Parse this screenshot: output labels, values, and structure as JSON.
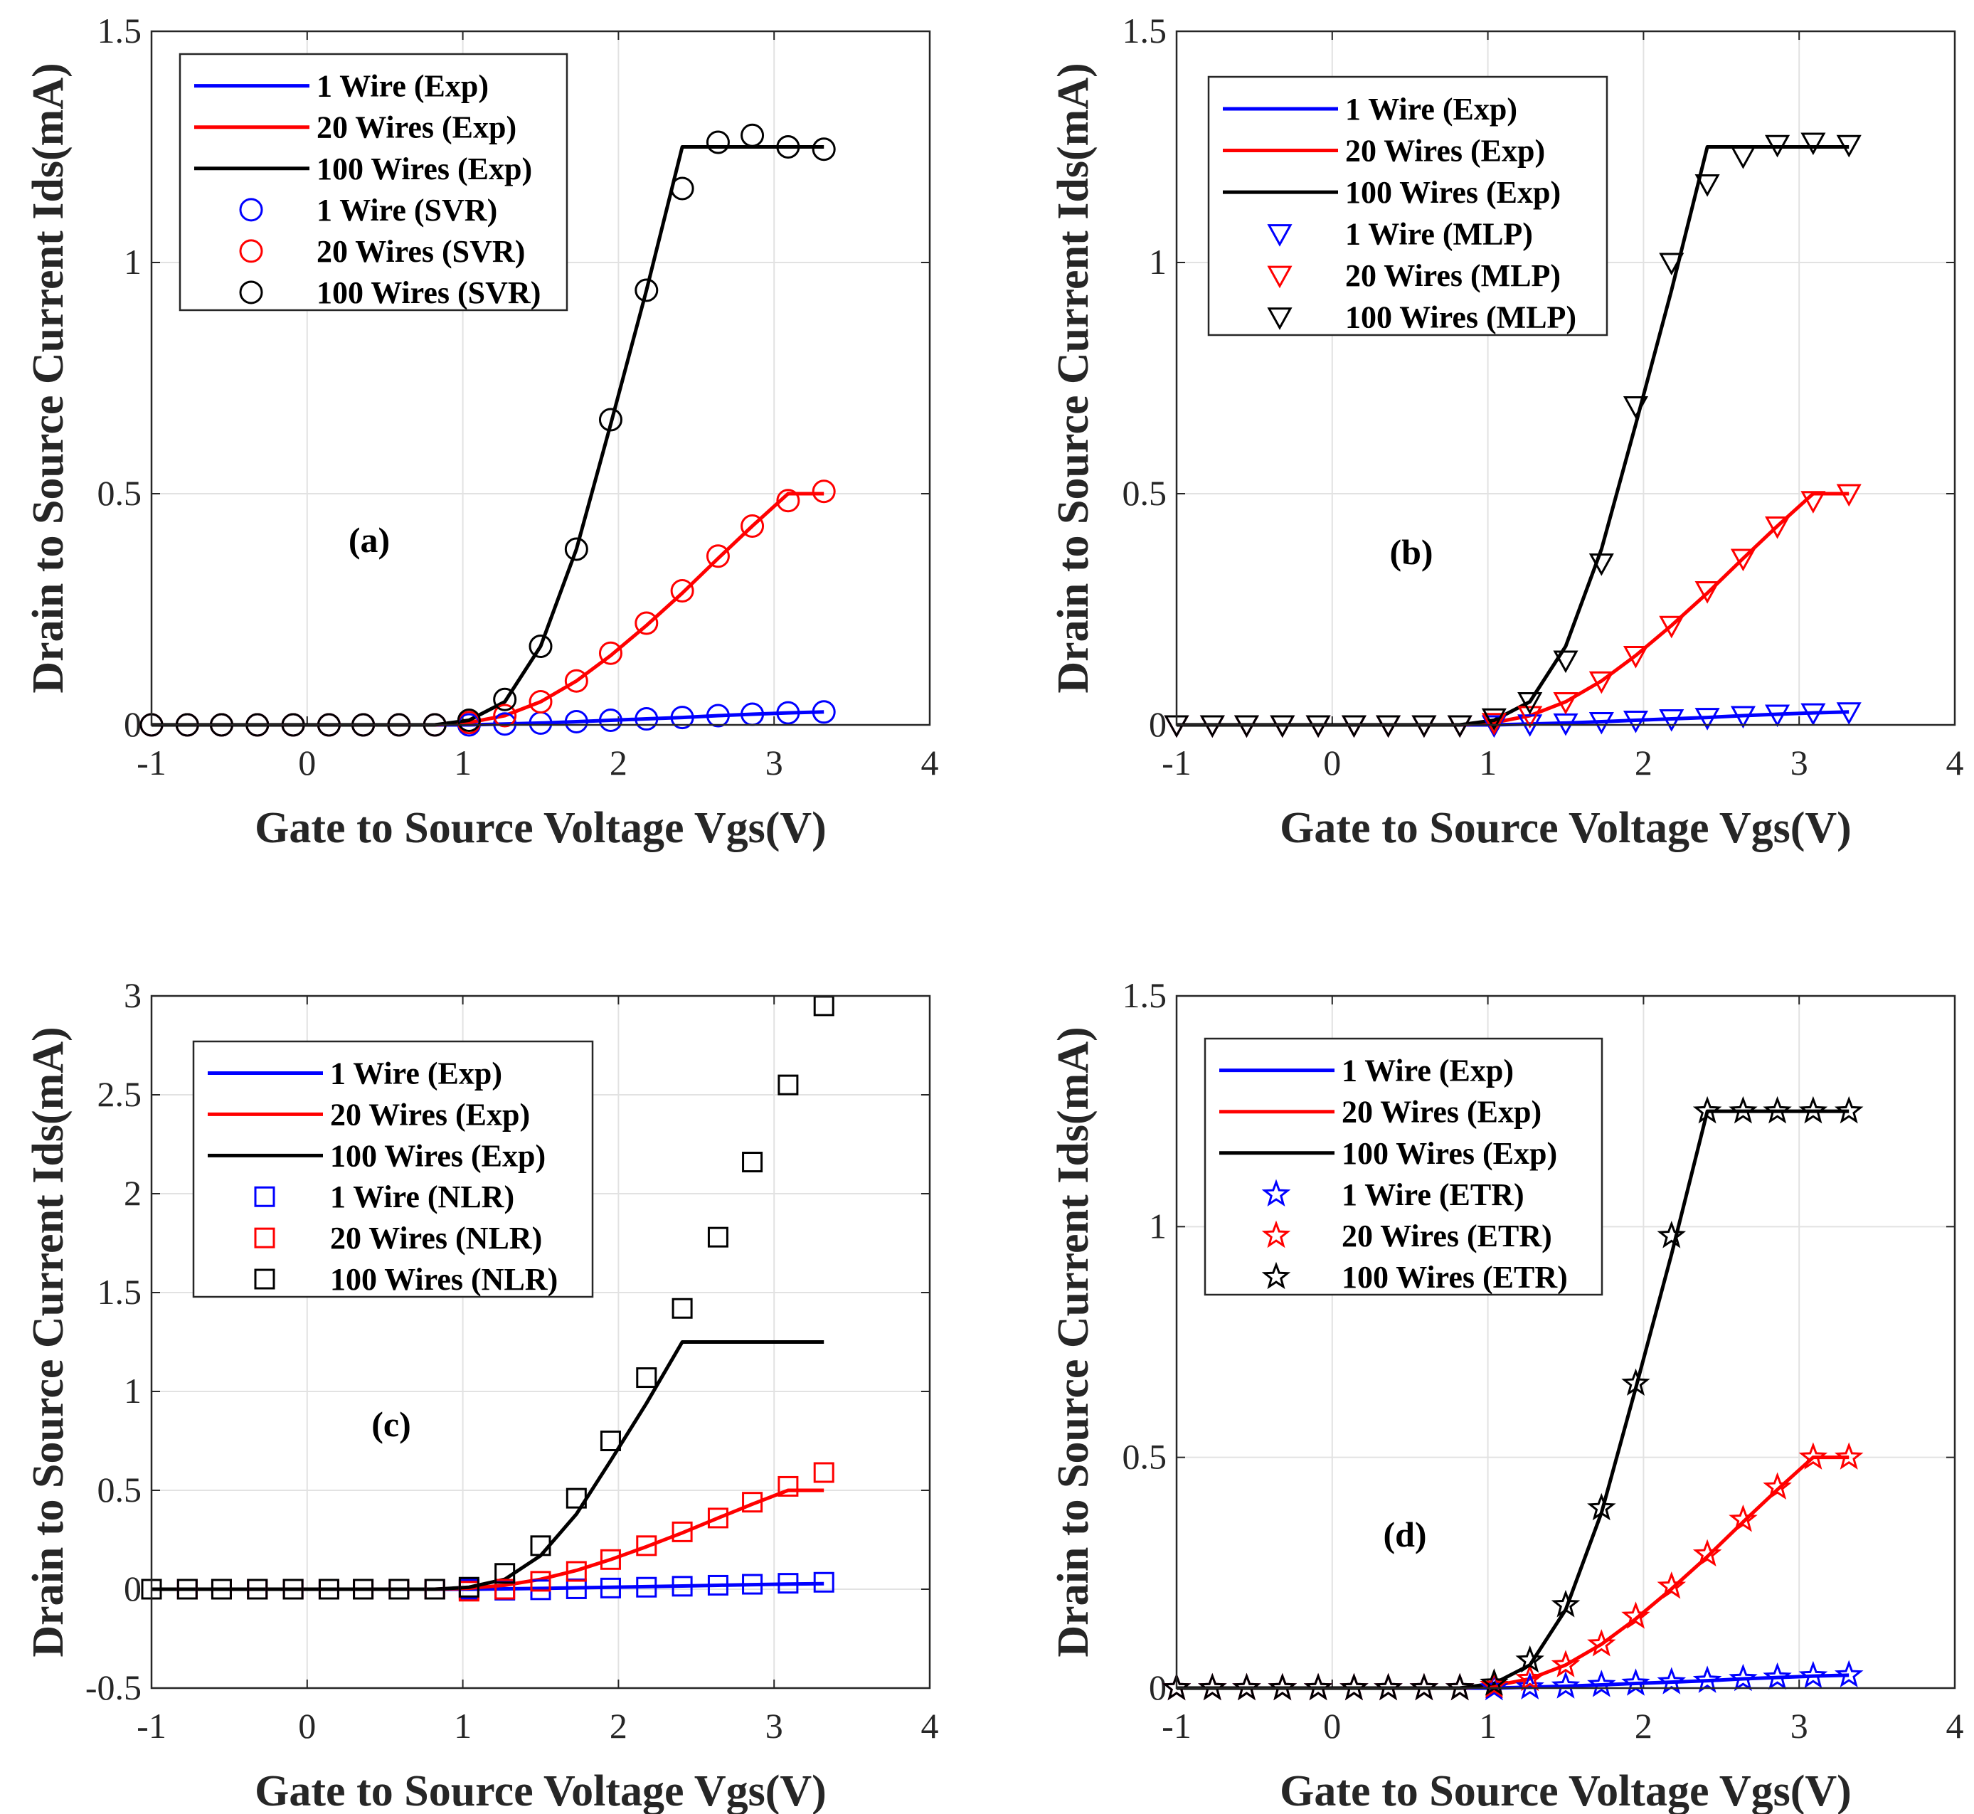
{
  "chart_data": [
    {
      "type": "line",
      "panel_label": "(a)",
      "xlabel": "Gate to Source Voltage Vgs(V)",
      "ylabel": "Drain to Source Current Ids(mA)",
      "xlim": [
        -1,
        4
      ],
      "ylim": [
        0,
        1.5
      ],
      "xticks": [
        -1,
        0,
        1,
        2,
        3,
        4
      ],
      "yticks": [
        0,
        0.5,
        1,
        1.5
      ],
      "xtick_labels": [
        "-1",
        "0",
        "1",
        "2",
        "3",
        "4"
      ],
      "ytick_labels": [
        "0",
        "0.5",
        "1",
        "1.5"
      ],
      "grid": true,
      "legend_placement": "top-left",
      "marker": "circle",
      "x": [
        -1,
        -0.77,
        -0.55,
        -0.32,
        -0.09,
        0.14,
        0.36,
        0.59,
        0.82,
        1.04,
        1.27,
        1.5,
        1.73,
        1.95,
        2.18,
        2.41,
        2.64,
        2.86,
        3.09,
        3.32
      ],
      "series": [
        {
          "name": "1 Wire (Exp)",
          "style": "line",
          "color": "#0000ff",
          "values": [
            0,
            0,
            0,
            0,
            0,
            0,
            0,
            0,
            0,
            0,
            0.002,
            0.004,
            0.007,
            0.01,
            0.013,
            0.016,
            0.02,
            0.023,
            0.026,
            0.028
          ]
        },
        {
          "name": "20 Wires (Exp)",
          "style": "line",
          "color": "#ff0000",
          "values": [
            0,
            0,
            0,
            0,
            0,
            0,
            0,
            0,
            0,
            0.005,
            0.02,
            0.05,
            0.095,
            0.15,
            0.215,
            0.285,
            0.36,
            0.43,
            0.5,
            0.5
          ]
        },
        {
          "name": "100 Wires (Exp)",
          "style": "line",
          "color": "#000000",
          "values": [
            0,
            0,
            0,
            0,
            0,
            0,
            0,
            0,
            0,
            0.01,
            0.05,
            0.17,
            0.38,
            0.65,
            0.94,
            1.25,
            1.25,
            1.25,
            1.25,
            1.25
          ]
        },
        {
          "name": "1 Wire (SVR)",
          "style": "marker",
          "color": "#0000ff",
          "values": [
            0,
            0,
            0,
            0,
            0,
            0,
            0,
            0,
            0,
            0,
            0.002,
            0.004,
            0.007,
            0.01,
            0.013,
            0.016,
            0.02,
            0.023,
            0.026,
            0.028
          ]
        },
        {
          "name": "20 Wires (SVR)",
          "style": "marker",
          "color": "#ff0000",
          "values": [
            0,
            0,
            0,
            0,
            0,
            0,
            0,
            0,
            0,
            0.005,
            0.02,
            0.05,
            0.095,
            0.155,
            0.22,
            0.29,
            0.365,
            0.43,
            0.485,
            0.505
          ]
        },
        {
          "name": "100 Wires (SVR)",
          "style": "marker",
          "color": "#000000",
          "values": [
            0,
            0,
            0,
            0,
            0,
            0,
            0,
            0,
            0,
            0.01,
            0.055,
            0.17,
            0.38,
            0.66,
            0.94,
            1.16,
            1.26,
            1.275,
            1.25,
            1.245
          ]
        }
      ]
    },
    {
      "type": "line",
      "panel_label": "(b)",
      "xlabel": "Gate to Source Voltage Vgs(V)",
      "ylabel": "Drain to Source Current Ids(mA)",
      "xlim": [
        -1,
        4
      ],
      "ylim": [
        0,
        1.5
      ],
      "xticks": [
        -1,
        0,
        1,
        2,
        3,
        4
      ],
      "yticks": [
        0,
        0.5,
        1,
        1.5
      ],
      "xtick_labels": [
        "-1",
        "0",
        "1",
        "2",
        "3",
        "4"
      ],
      "ytick_labels": [
        "0",
        "0.5",
        "1",
        "1.5"
      ],
      "grid": true,
      "legend_placement": "top-left",
      "marker": "triangle-down",
      "x": [
        -1,
        -0.77,
        -0.55,
        -0.32,
        -0.09,
        0.14,
        0.36,
        0.59,
        0.82,
        1.04,
        1.27,
        1.5,
        1.73,
        1.95,
        2.18,
        2.41,
        2.64,
        2.86,
        3.09,
        3.32
      ],
      "series": [
        {
          "name": "1 Wire (Exp)",
          "style": "line",
          "color": "#0000ff",
          "values": [
            0,
            0,
            0,
            0,
            0,
            0,
            0,
            0,
            0,
            0,
            0.002,
            0.004,
            0.007,
            0.01,
            0.013,
            0.016,
            0.02,
            0.023,
            0.026,
            0.028
          ]
        },
        {
          "name": "20 Wires (Exp)",
          "style": "line",
          "color": "#ff0000",
          "values": [
            0,
            0,
            0,
            0,
            0,
            0,
            0,
            0,
            0,
            0.005,
            0.02,
            0.05,
            0.095,
            0.15,
            0.215,
            0.285,
            0.36,
            0.43,
            0.5,
            0.5
          ]
        },
        {
          "name": "100 Wires (Exp)",
          "style": "line",
          "color": "#000000",
          "values": [
            0,
            0,
            0,
            0,
            0,
            0,
            0,
            0,
            0,
            0.01,
            0.05,
            0.17,
            0.38,
            0.65,
            0.94,
            1.25,
            1.25,
            1.25,
            1.25,
            1.25
          ]
        },
        {
          "name": "1 Wire (MLP)",
          "style": "marker",
          "color": "#0000ff",
          "values": [
            0,
            0,
            0,
            0,
            0,
            0,
            0,
            0,
            0,
            0,
            0.002,
            0.004,
            0.007,
            0.01,
            0.013,
            0.016,
            0.02,
            0.023,
            0.026,
            0.028
          ]
        },
        {
          "name": "20 Wires (MLP)",
          "style": "marker",
          "color": "#ff0000",
          "values": [
            0,
            0,
            0,
            0,
            0,
            0,
            0,
            0,
            0,
            0.005,
            0.02,
            0.05,
            0.095,
            0.15,
            0.215,
            0.29,
            0.36,
            0.43,
            0.485,
            0.5
          ]
        },
        {
          "name": "100 Wires (MLP)",
          "style": "marker",
          "color": "#000000",
          "values": [
            0,
            0,
            0,
            0,
            0,
            0,
            0,
            0,
            0,
            0.015,
            0.05,
            0.14,
            0.35,
            0.69,
            1.0,
            1.17,
            1.23,
            1.255,
            1.26,
            1.255
          ]
        }
      ]
    },
    {
      "type": "line",
      "panel_label": "(c)",
      "xlabel": "Gate to Source Voltage Vgs(V)",
      "ylabel": "Drain to Source Current Ids(mA)",
      "xlim": [
        -1,
        4
      ],
      "ylim": [
        -0.5,
        3
      ],
      "xticks": [
        -1,
        0,
        1,
        2,
        3,
        4
      ],
      "yticks": [
        -0.5,
        0,
        0.5,
        1,
        1.5,
        2,
        2.5,
        3
      ],
      "xtick_labels": [
        "-1",
        "0",
        "1",
        "2",
        "3",
        "4"
      ],
      "ytick_labels": [
        "-0.5",
        "0",
        "0.5",
        "1",
        "1.5",
        "2",
        "2.5",
        "3"
      ],
      "grid": true,
      "legend_placement": "top-left",
      "marker": "square",
      "x": [
        -1,
        -0.77,
        -0.55,
        -0.32,
        -0.09,
        0.14,
        0.36,
        0.59,
        0.82,
        1.04,
        1.27,
        1.5,
        1.73,
        1.95,
        2.18,
        2.41,
        2.64,
        2.86,
        3.09,
        3.32
      ],
      "series": [
        {
          "name": "1 Wire (Exp)",
          "style": "line",
          "color": "#0000ff",
          "values": [
            0,
            0,
            0,
            0,
            0,
            0,
            0,
            0,
            0,
            0,
            0.002,
            0.004,
            0.007,
            0.01,
            0.013,
            0.016,
            0.02,
            0.023,
            0.026,
            0.028
          ]
        },
        {
          "name": "20 Wires (Exp)",
          "style": "line",
          "color": "#ff0000",
          "values": [
            0,
            0,
            0,
            0,
            0,
            0,
            0,
            0,
            0,
            0.005,
            0.02,
            0.05,
            0.095,
            0.15,
            0.215,
            0.285,
            0.36,
            0.43,
            0.5,
            0.5
          ]
        },
        {
          "name": "100 Wires (Exp)",
          "style": "line",
          "color": "#000000",
          "values": [
            0,
            0,
            0,
            0,
            0,
            0,
            0,
            0,
            0,
            0.01,
            0.05,
            0.17,
            0.38,
            0.65,
            0.94,
            1.25,
            1.25,
            1.25,
            1.25,
            1.25
          ]
        },
        {
          "name": "1 Wire (NLR)",
          "style": "marker",
          "color": "#0000ff",
          "values": [
            0,
            0,
            0,
            0,
            0,
            0,
            0,
            0,
            0,
            0,
            -0.005,
            -0.003,
            0.002,
            0.006,
            0.01,
            0.015,
            0.02,
            0.025,
            0.03,
            0.035
          ]
        },
        {
          "name": "20 Wires (NLR)",
          "style": "marker",
          "color": "#ff0000",
          "values": [
            0,
            0,
            0,
            0,
            0,
            0,
            0,
            0,
            0,
            -0.01,
            0.0,
            0.04,
            0.09,
            0.15,
            0.22,
            0.29,
            0.36,
            0.44,
            0.52,
            0.59
          ]
        },
        {
          "name": "100 Wires (NLR)",
          "style": "marker",
          "color": "#000000",
          "values": [
            0,
            0,
            0,
            0,
            0,
            0,
            0,
            0,
            0,
            0.01,
            0.08,
            0.22,
            0.46,
            0.75,
            1.07,
            1.42,
            1.78,
            2.16,
            2.55,
            2.95
          ]
        }
      ]
    },
    {
      "type": "line",
      "panel_label": "(d)",
      "xlabel": "Gate to Source Voltage Vgs(V)",
      "ylabel": "Drain to Source Current Ids(mA)",
      "xlim": [
        -1,
        4
      ],
      "ylim": [
        0,
        1.5
      ],
      "xticks": [
        -1,
        0,
        1,
        2,
        3,
        4
      ],
      "yticks": [
        0,
        0.5,
        1,
        1.5
      ],
      "xtick_labels": [
        "-1",
        "0",
        "1",
        "2",
        "3",
        "4"
      ],
      "ytick_labels": [
        "0",
        "0.5",
        "1",
        "1.5"
      ],
      "grid": true,
      "legend_placement": "top-left",
      "marker": "star",
      "x": [
        -1,
        -0.77,
        -0.55,
        -0.32,
        -0.09,
        0.14,
        0.36,
        0.59,
        0.82,
        1.04,
        1.27,
        1.5,
        1.73,
        1.95,
        2.18,
        2.41,
        2.64,
        2.86,
        3.09,
        3.32
      ],
      "series": [
        {
          "name": "1 Wire (Exp)",
          "style": "line",
          "color": "#0000ff",
          "values": [
            0,
            0,
            0,
            0,
            0,
            0,
            0,
            0,
            0,
            0,
            0.002,
            0.004,
            0.007,
            0.01,
            0.013,
            0.016,
            0.02,
            0.023,
            0.026,
            0.028
          ]
        },
        {
          "name": "20 Wires (Exp)",
          "style": "line",
          "color": "#ff0000",
          "values": [
            0,
            0,
            0,
            0,
            0,
            0,
            0,
            0,
            0,
            0.005,
            0.02,
            0.05,
            0.095,
            0.15,
            0.215,
            0.285,
            0.36,
            0.43,
            0.5,
            0.5
          ]
        },
        {
          "name": "100 Wires (Exp)",
          "style": "line",
          "color": "#000000",
          "values": [
            0,
            0,
            0,
            0,
            0,
            0,
            0,
            0,
            0,
            0.01,
            0.05,
            0.17,
            0.38,
            0.65,
            0.94,
            1.25,
            1.25,
            1.25,
            1.25,
            1.25
          ]
        },
        {
          "name": "1 Wire (ETR)",
          "style": "marker",
          "color": "#0000ff",
          "values": [
            0,
            0,
            0,
            0,
            0,
            0,
            0,
            0,
            0,
            0,
            0.002,
            0.004,
            0.007,
            0.01,
            0.013,
            0.016,
            0.02,
            0.023,
            0.026,
            0.028
          ]
        },
        {
          "name": "20 Wires (ETR)",
          "style": "marker",
          "color": "#ff0000",
          "values": [
            0,
            0,
            0,
            0,
            0,
            0,
            0,
            0,
            0,
            0.005,
            0.02,
            0.05,
            0.095,
            0.155,
            0.22,
            0.29,
            0.365,
            0.435,
            0.5,
            0.5
          ]
        },
        {
          "name": "100 Wires (ETR)",
          "style": "marker",
          "color": "#000000",
          "values": [
            0,
            0,
            0,
            0,
            0,
            0,
            0,
            0,
            0,
            0.01,
            0.06,
            0.18,
            0.39,
            0.66,
            0.98,
            1.25,
            1.25,
            1.25,
            1.25,
            1.25
          ]
        }
      ]
    }
  ]
}
